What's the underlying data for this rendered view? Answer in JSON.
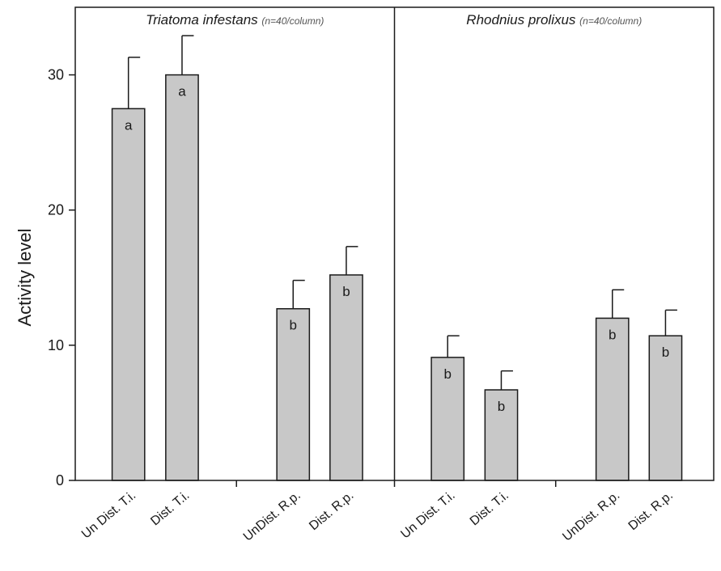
{
  "chart_data": {
    "type": "bar",
    "ylabel": "Activity level",
    "ylim": [
      0,
      35
    ],
    "yticks": [
      0,
      10,
      20,
      30
    ],
    "grid": false,
    "bar_color": "#c8c8c8",
    "panels": [
      {
        "title": "Triatoma infestans",
        "note": "(n=40/column)",
        "groups": [
          {
            "bars": [
              {
                "category": "Un Dist. T.i.",
                "value": 27.5,
                "error": 3.8,
                "letter": "a"
              },
              {
                "category": "Dist. T.i.",
                "value": 30.0,
                "error": 2.9,
                "letter": "a"
              }
            ]
          },
          {
            "bars": [
              {
                "category": "UnDist. R.p.",
                "value": 12.7,
                "error": 2.1,
                "letter": "b"
              },
              {
                "category": "Dist. R.p.",
                "value": 15.2,
                "error": 2.1,
                "letter": "b"
              }
            ]
          }
        ]
      },
      {
        "title": "Rhodnius prolixus",
        "note": "(n=40/column)",
        "groups": [
          {
            "bars": [
              {
                "category": "Un Dist. T.i.",
                "value": 9.1,
                "error": 1.6,
                "letter": "b"
              },
              {
                "category": "Dist. T.i.",
                "value": 6.7,
                "error": 1.4,
                "letter": "b"
              }
            ]
          },
          {
            "bars": [
              {
                "category": "UnDist. R.p.",
                "value": 12.0,
                "error": 2.1,
                "letter": "b"
              },
              {
                "category": "Dist. R.p.",
                "value": 10.7,
                "error": 1.9,
                "letter": "b"
              }
            ]
          }
        ]
      }
    ]
  }
}
